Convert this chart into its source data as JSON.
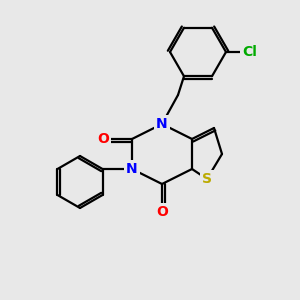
{
  "background_color": "#e8e8e8",
  "bond_color": "#000000",
  "atom_colors": {
    "N": "#0000ff",
    "O": "#ff0000",
    "S": "#bbaa00",
    "Cl": "#00aa00",
    "C": "#000000"
  },
  "font_size": 10,
  "fig_size": [
    3.0,
    3.0
  ],
  "dpi": 100
}
